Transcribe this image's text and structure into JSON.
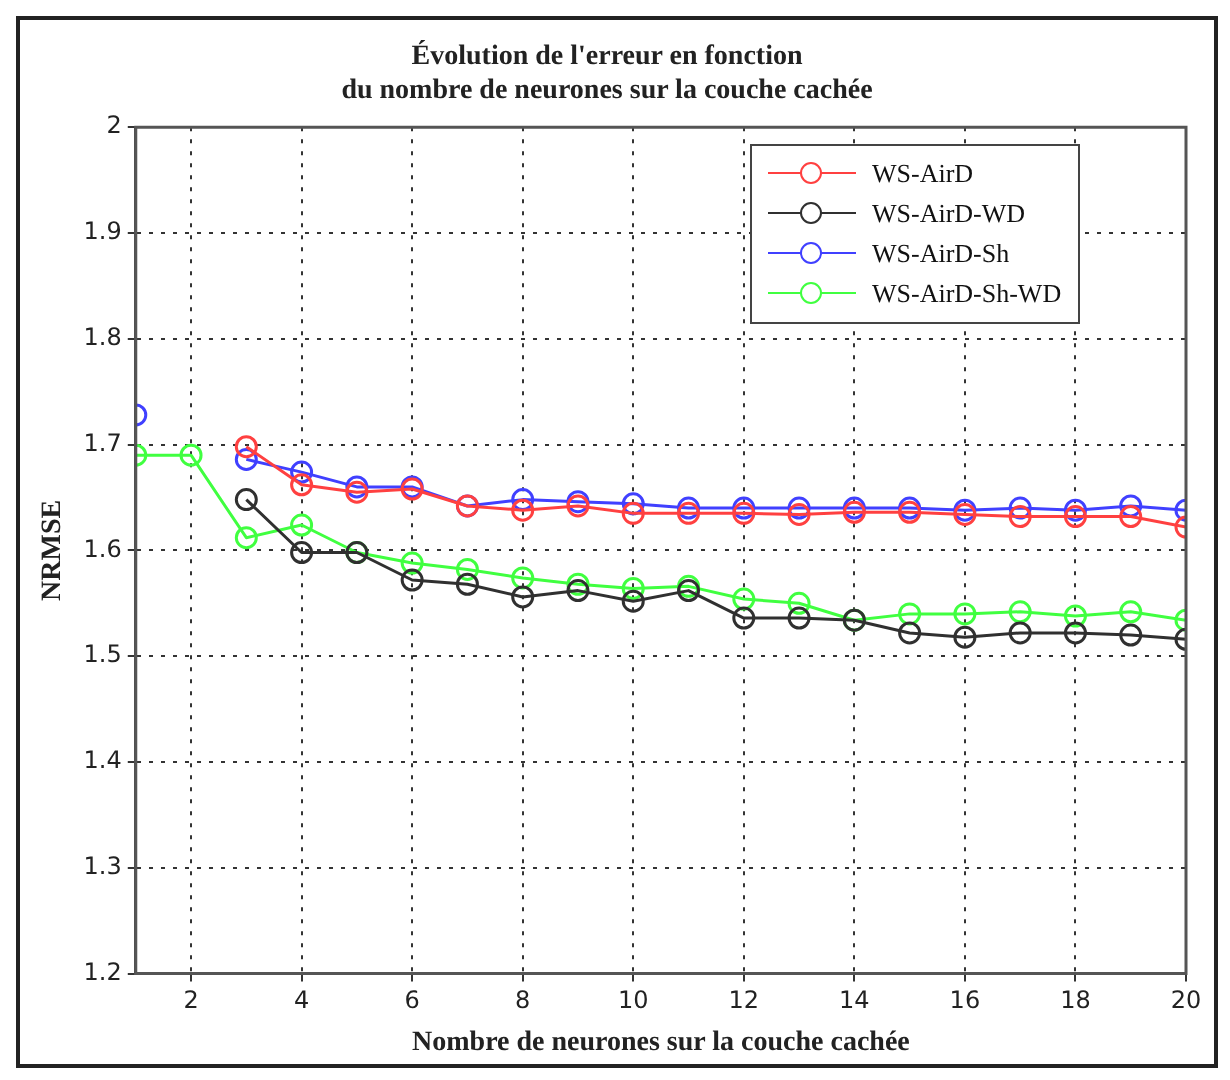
{
  "chart_data": {
    "type": "line",
    "title": [
      "Évolution de l'erreur en fonction",
      "du nombre de neurones sur la couche cachée"
    ],
    "xlabel": "Nombre de neurones sur la couche cachée",
    "ylabel": "NRMSE",
    "x": [
      1,
      2,
      3,
      4,
      5,
      6,
      7,
      8,
      9,
      10,
      11,
      12,
      13,
      14,
      15,
      16,
      17,
      18,
      19,
      20
    ],
    "series": [
      {
        "name": "WS-AirD",
        "color": "#ff4040",
        "values": [
          null,
          null,
          1.698,
          1.662,
          1.655,
          1.658,
          1.642,
          1.638,
          1.642,
          1.635,
          1.635,
          1.635,
          1.634,
          1.636,
          1.636,
          1.634,
          1.632,
          1.632,
          1.632,
          1.622
        ]
      },
      {
        "name": "WS-AirD-WD",
        "color": "#303030",
        "values": [
          null,
          null,
          1.648,
          1.598,
          1.598,
          1.572,
          1.568,
          1.556,
          1.562,
          1.552,
          1.562,
          1.536,
          1.536,
          1.534,
          1.522,
          1.518,
          1.522,
          1.522,
          1.52,
          1.516
        ]
      },
      {
        "name": "WS-AirD-Sh",
        "color": "#4040ff",
        "values": [
          1.728,
          null,
          1.686,
          1.674,
          1.66,
          1.66,
          1.642,
          1.648,
          1.646,
          1.644,
          1.64,
          1.64,
          1.64,
          1.64,
          1.64,
          1.638,
          1.64,
          1.638,
          1.642,
          1.638
        ]
      },
      {
        "name": "WS-AirD-Sh-WD",
        "color": "#40ff40",
        "values": [
          1.69,
          1.69,
          1.612,
          1.624,
          1.598,
          1.588,
          1.582,
          1.574,
          1.568,
          1.564,
          1.566,
          1.554,
          1.55,
          1.534,
          1.54,
          1.54,
          1.542,
          1.538,
          1.542,
          1.534
        ]
      }
    ],
    "xlim": [
      1,
      20
    ],
    "xticks": [
      2,
      4,
      6,
      8,
      10,
      12,
      14,
      16,
      18,
      20
    ],
    "ylim": [
      1.2,
      2
    ],
    "yticks": [
      1.2,
      1.3,
      1.4,
      1.5,
      1.6,
      1.7,
      1.8,
      1.9,
      2
    ],
    "grid": true,
    "legend": "top right",
    "marker": "circle",
    "line_style": "solid"
  }
}
